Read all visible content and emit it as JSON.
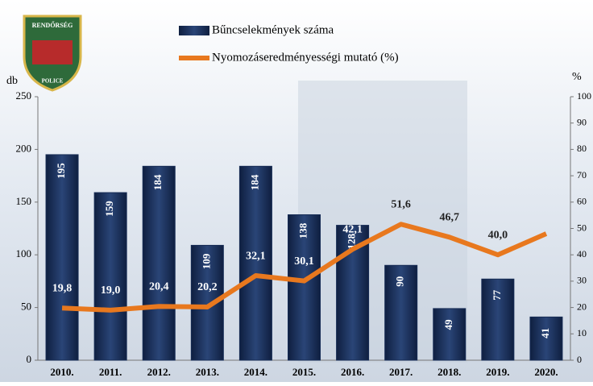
{
  "chart_data": {
    "type": "bar-line",
    "categories": [
      "2010.",
      "2011.",
      "2012.",
      "2013.",
      "2014.",
      "2015.",
      "2016.",
      "2017.",
      "2018.",
      "2019.",
      "2020."
    ],
    "series": [
      {
        "name": "Bűncselekmények száma",
        "type": "bar",
        "color": "#172c55",
        "values": [
          195,
          159,
          184,
          109,
          184,
          138,
          128,
          90,
          49,
          77,
          41
        ]
      },
      {
        "name": "Nyomozáseredményességi mutató (%)",
        "type": "line",
        "axis": "y2",
        "color": "#e8781e",
        "values": [
          19.8,
          19.0,
          20.4,
          20.2,
          32.1,
          30.1,
          42.1,
          51.6,
          46.7,
          40.0,
          48
        ],
        "value_labels": [
          "19,8",
          "19,0",
          "20,4",
          "20,2",
          "32,1",
          "30,1",
          "42,1",
          "51,6",
          "46,7",
          "40,0",
          null
        ]
      }
    ],
    "y_label": "db",
    "y2_label": "%",
    "ylim": [
      0,
      250
    ],
    "yticks": [
      0,
      50,
      100,
      150,
      200,
      250
    ],
    "y2lim": [
      0,
      100
    ],
    "y2ticks": [
      0,
      10,
      20,
      30,
      40,
      50,
      60,
      70,
      80,
      90,
      100
    ]
  },
  "logo": {
    "top": "RENDŐRSÉG",
    "bottom": "POLICE"
  }
}
